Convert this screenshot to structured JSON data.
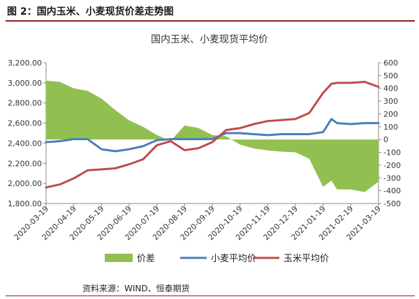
{
  "figure_label": "图 2：国内玉米、小麦现货价差走势图",
  "source_text": "资料来源：WIND、恒泰期货",
  "chart_data": {
    "type": "line",
    "title": "国内玉米、小麦现货平均价",
    "x_tick_labels": [
      "2020-03-19",
      "2020-04-19",
      "2020-05-19",
      "2020-06-19",
      "2020-07-19",
      "2020-08-19",
      "2020-09-19",
      "2020-10-19",
      "2020-11-19",
      "2020-12-19",
      "2021-01-19",
      "2021-02-19",
      "2021-03-19"
    ],
    "y_left": {
      "range": [
        1800,
        3200
      ],
      "ticks": [
        "1,800.00",
        "2,000.00",
        "2,200.00",
        "2,400.00",
        "2,600.00",
        "2,800.00",
        "3,000.00",
        "3,200.00"
      ]
    },
    "y_right": {
      "range": [
        -500,
        600
      ],
      "ticks": [
        "-500",
        "-400",
        "-300",
        "-200",
        "-100",
        "0",
        "100",
        "200",
        "300",
        "400",
        "500",
        "600"
      ]
    },
    "legend": {
      "position": "bottom",
      "items": [
        "价差",
        "小麦平均价",
        "玉米平均价"
      ]
    },
    "x": [
      0,
      0.5,
      1,
      1.5,
      2,
      2.5,
      3,
      3.5,
      4,
      4.5,
      5,
      5.5,
      6,
      6.5,
      7,
      7.5,
      8,
      8.5,
      9,
      9.5,
      10,
      10.3,
      10.5,
      11,
      11.5,
      12
    ],
    "series": [
      {
        "name": "价差",
        "axis": "right",
        "color": "#92c050",
        "values": [
          460,
          450,
          400,
          380,
          320,
          230,
          150,
          100,
          35,
          -10,
          110,
          90,
          35,
          25,
          -40,
          -70,
          -85,
          -95,
          -100,
          -150,
          -370,
          -320,
          -390,
          -390,
          -410,
          -330
        ]
      },
      {
        "name": "小麦平均价",
        "axis": "left",
        "color": "#4a7ebb",
        "values": [
          2410,
          2420,
          2440,
          2440,
          2340,
          2320,
          2340,
          2370,
          2430,
          2440,
          2440,
          2440,
          2440,
          2500,
          2500,
          2490,
          2480,
          2490,
          2490,
          2490,
          2510,
          2640,
          2600,
          2590,
          2600,
          2600
        ]
      },
      {
        "name": "玉米平均价",
        "axis": "left",
        "color": "#be4b48",
        "values": [
          1960,
          1990,
          2050,
          2130,
          2140,
          2150,
          2190,
          2240,
          2380,
          2420,
          2330,
          2350,
          2410,
          2530,
          2550,
          2590,
          2620,
          2630,
          2640,
          2700,
          2900,
          2990,
          3000,
          3000,
          3010,
          2960
        ]
      }
    ]
  }
}
